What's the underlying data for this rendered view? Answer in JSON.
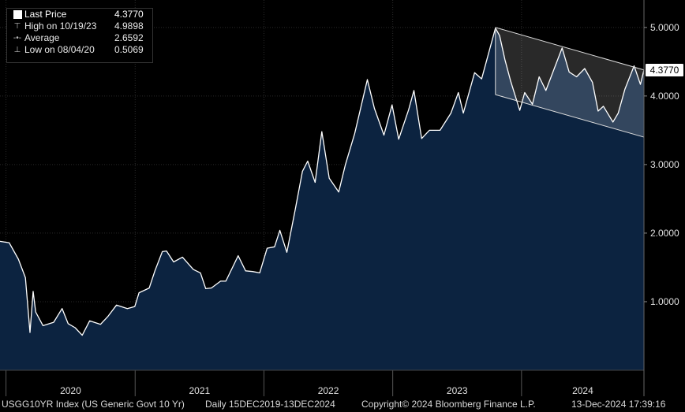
{
  "legend": {
    "items": [
      {
        "label": "Last Price",
        "value": "4.3770",
        "marker": "square"
      },
      {
        "label": "High on 10/19/23",
        "value": "4.9898",
        "marker": "high"
      },
      {
        "label": "Average",
        "value": "2.6592",
        "marker": "dot"
      },
      {
        "label": "Low on 08/04/20",
        "value": "0.5069",
        "marker": "low"
      }
    ]
  },
  "last_price_tag": "4.3770",
  "footer": {
    "ticker": "USGG10YR Index (US Generic Govt 10 Yr)",
    "range": "Daily 15DEC2019-13DEC2024",
    "copyright": "Copyright© 2024 Bloomberg Finance L.P.",
    "timestamp": "13-Dec-2024 17:39:16"
  },
  "colors": {
    "background": "#000000",
    "area_fill": "#0c2340",
    "line": "#ffffff",
    "grid": "#2a2a2a",
    "channel_fill": "#ffffff"
  },
  "chart_data": {
    "type": "area",
    "x_tick_labels": [
      "2020",
      "2021",
      "2022",
      "2023",
      "2024"
    ],
    "y_tick_labels": [
      "1.0000",
      "2.0000",
      "3.0000",
      "4.0000",
      "5.0000"
    ],
    "yticks": [
      1,
      2,
      3,
      4,
      5
    ],
    "ylim": [
      0,
      5.4
    ],
    "xlim": [
      "2019-12-15",
      "2024-12-13"
    ],
    "grid": true,
    "legend_position": "top-left",
    "series": [
      {
        "values": [
          [
            "2019-12-15",
            1.88
          ],
          [
            "2020-01-10",
            1.86
          ],
          [
            "2020-02-05",
            1.62
          ],
          [
            "2020-02-25",
            1.35
          ],
          [
            "2020-03-09",
            0.55
          ],
          [
            "2020-03-18",
            1.15
          ],
          [
            "2020-03-25",
            0.85
          ],
          [
            "2020-04-15",
            0.65
          ],
          [
            "2020-05-15",
            0.7
          ],
          [
            "2020-06-08",
            0.9
          ],
          [
            "2020-06-25",
            0.68
          ],
          [
            "2020-07-15",
            0.62
          ],
          [
            "2020-08-04",
            0.51
          ],
          [
            "2020-08-25",
            0.72
          ],
          [
            "2020-09-25",
            0.67
          ],
          [
            "2020-10-15",
            0.78
          ],
          [
            "2020-11-09",
            0.95
          ],
          [
            "2020-12-10",
            0.9
          ],
          [
            "2020-12-31",
            0.93
          ],
          [
            "2021-01-12",
            1.13
          ],
          [
            "2021-02-10",
            1.2
          ],
          [
            "2021-02-26",
            1.45
          ],
          [
            "2021-03-19",
            1.73
          ],
          [
            "2021-03-31",
            1.74
          ],
          [
            "2021-04-20",
            1.58
          ],
          [
            "2021-05-15",
            1.65
          ],
          [
            "2021-06-15",
            1.47
          ],
          [
            "2021-07-05",
            1.42
          ],
          [
            "2021-07-20",
            1.19
          ],
          [
            "2021-08-05",
            1.2
          ],
          [
            "2021-08-31",
            1.3
          ],
          [
            "2021-09-15",
            1.3
          ],
          [
            "2021-10-20",
            1.67
          ],
          [
            "2021-11-10",
            1.45
          ],
          [
            "2021-11-30",
            1.44
          ],
          [
            "2021-12-20",
            1.42
          ],
          [
            "2022-01-10",
            1.78
          ],
          [
            "2022-01-31",
            1.8
          ],
          [
            "2022-02-15",
            2.04
          ],
          [
            "2022-03-07",
            1.72
          ],
          [
            "2022-03-31",
            2.35
          ],
          [
            "2022-04-20",
            2.9
          ],
          [
            "2022-05-05",
            3.05
          ],
          [
            "2022-05-26",
            2.74
          ],
          [
            "2022-06-14",
            3.48
          ],
          [
            "2022-07-05",
            2.8
          ],
          [
            "2022-08-01",
            2.6
          ],
          [
            "2022-08-20",
            3.0
          ],
          [
            "2022-09-15",
            3.45
          ],
          [
            "2022-10-21",
            4.24
          ],
          [
            "2022-11-10",
            3.82
          ],
          [
            "2022-12-07",
            3.43
          ],
          [
            "2022-12-30",
            3.87
          ],
          [
            "2023-01-18",
            3.37
          ],
          [
            "2023-02-15",
            3.8
          ],
          [
            "2023-03-02",
            4.08
          ],
          [
            "2023-03-24",
            3.38
          ],
          [
            "2023-04-15",
            3.5
          ],
          [
            "2023-05-15",
            3.5
          ],
          [
            "2023-06-15",
            3.75
          ],
          [
            "2023-07-06",
            4.05
          ],
          [
            "2023-07-20",
            3.75
          ],
          [
            "2023-08-21",
            4.34
          ],
          [
            "2023-09-10",
            4.25
          ],
          [
            "2023-10-19",
            4.99
          ],
          [
            "2023-10-31",
            4.88
          ],
          [
            "2023-11-15",
            4.53
          ],
          [
            "2023-12-01",
            4.22
          ],
          [
            "2023-12-27",
            3.79
          ],
          [
            "2024-01-10",
            4.05
          ],
          [
            "2024-02-01",
            3.88
          ],
          [
            "2024-02-20",
            4.28
          ],
          [
            "2024-03-10",
            4.08
          ],
          [
            "2024-04-25",
            4.7
          ],
          [
            "2024-05-15",
            4.35
          ],
          [
            "2024-06-05",
            4.28
          ],
          [
            "2024-06-28",
            4.4
          ],
          [
            "2024-07-20",
            4.2
          ],
          [
            "2024-08-05",
            3.78
          ],
          [
            "2024-08-20",
            3.85
          ],
          [
            "2024-09-16",
            3.62
          ],
          [
            "2024-10-01",
            3.75
          ],
          [
            "2024-10-20",
            4.1
          ],
          [
            "2024-11-15",
            4.44
          ],
          [
            "2024-12-03",
            4.17
          ],
          [
            "2024-12-13",
            4.38
          ]
        ]
      }
    ],
    "annotations": [
      {
        "type": "channel",
        "upper": [
          [
            "2023-10-19",
            5.0
          ],
          [
            "2024-12-13",
            4.38
          ]
        ],
        "lower": [
          [
            "2023-10-19",
            4.02
          ],
          [
            "2024-12-13",
            3.4
          ]
        ]
      }
    ]
  }
}
